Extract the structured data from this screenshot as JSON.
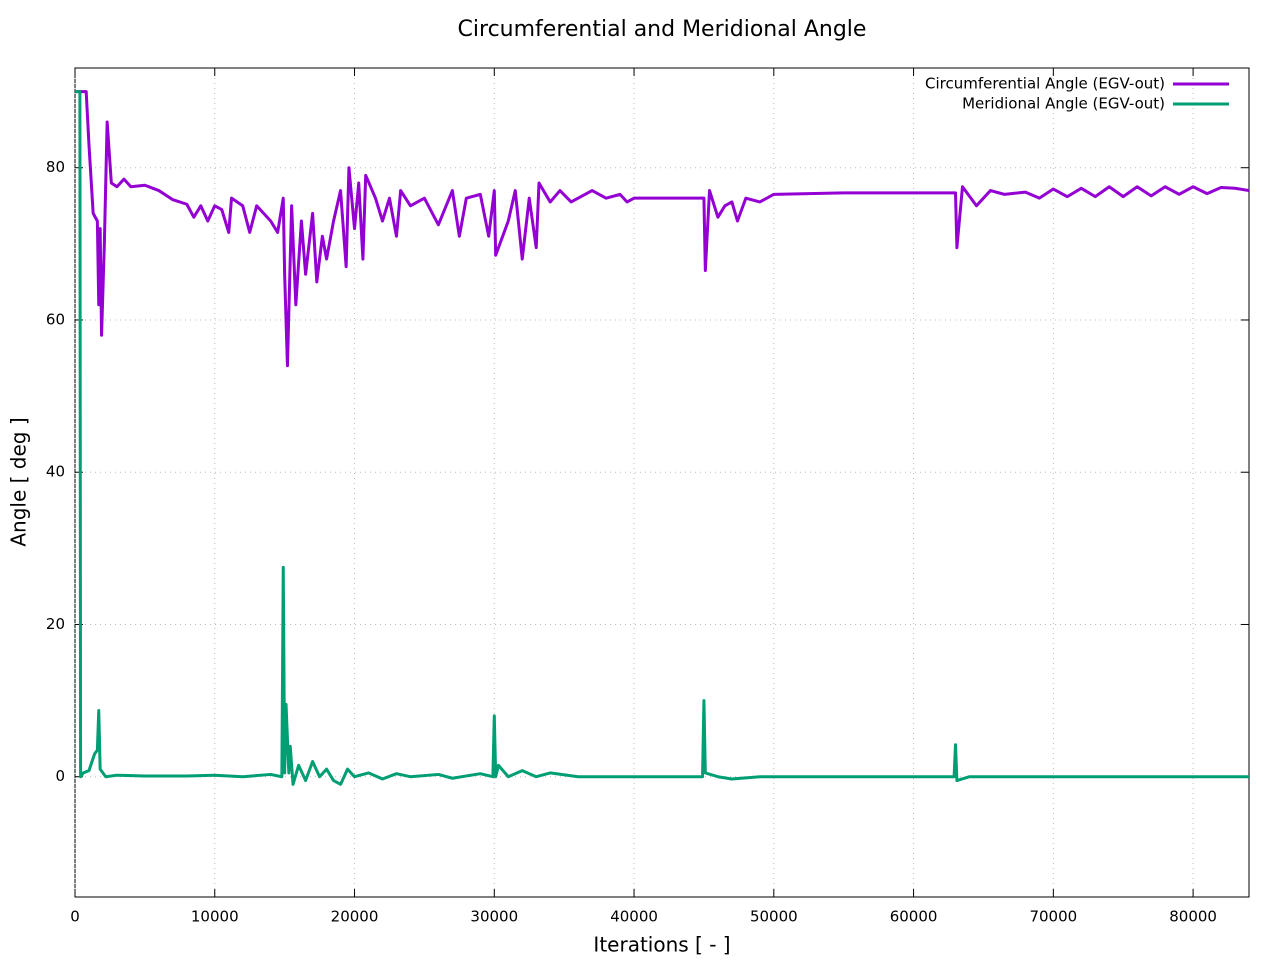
{
  "chart_data": {
    "type": "line",
    "title": "Circumferential and Meridional Angle",
    "x_label": "Iterations [ - ]",
    "y_label": "Angle [ deg ]",
    "xlim": [
      0,
      84000
    ],
    "ylim": [
      -15.8,
      93.1
    ],
    "xticks": [
      0,
      10000,
      20000,
      30000,
      40000,
      50000,
      60000,
      70000,
      80000
    ],
    "yticks": [
      0,
      20,
      40,
      60,
      80
    ],
    "grid": true,
    "legend": "top-right",
    "series": [
      {
        "name": "Circumferential Angle (EGV-out)",
        "color": "#9400d3",
        "x": [
          0,
          800,
          1000,
          1300,
          1600,
          1700,
          1800,
          1900,
          2100,
          2300,
          2600,
          3000,
          3500,
          4000,
          5000,
          6000,
          7000,
          8000,
          8500,
          9000,
          9500,
          10000,
          10500,
          11000,
          11200,
          12000,
          12500,
          13000,
          14000,
          14500,
          14900,
          15000,
          15200,
          15500,
          15800,
          16200,
          16500,
          17000,
          17300,
          17700,
          18000,
          18500,
          19000,
          19400,
          19600,
          20000,
          20300,
          20600,
          20800,
          21500,
          22000,
          22500,
          23000,
          23300,
          24000,
          25000,
          26000,
          27000,
          27500,
          28000,
          29000,
          29600,
          30000,
          30100,
          31000,
          31500,
          32000,
          32500,
          33000,
          33200,
          34000,
          34700,
          35500,
          37000,
          38000,
          39000,
          39500,
          40000,
          41000,
          45000,
          45100,
          45400,
          46000,
          46500,
          47000,
          47400,
          48000,
          49000,
          50000,
          55000,
          63000,
          63100,
          63500,
          64500,
          65500,
          66500,
          68000,
          69000,
          70000,
          71000,
          72000,
          73000,
          74000,
          75000,
          76000,
          77000,
          78000,
          79000,
          80000,
          81000,
          82000,
          83000,
          84000
        ],
        "values": [
          90,
          90,
          83,
          74,
          73,
          62,
          72,
          58,
          70,
          86,
          78,
          77.5,
          78.5,
          77.5,
          77.7,
          77,
          75.8,
          75.2,
          73.5,
          75,
          73,
          75,
          74.5,
          71.5,
          76,
          75,
          71.5,
          75,
          73,
          71.5,
          76,
          66,
          54,
          75,
          62,
          73,
          66,
          74,
          65,
          71,
          68,
          73,
          77,
          67,
          80,
          72,
          78,
          68,
          79,
          76,
          73,
          76,
          71,
          77,
          75,
          76,
          72.5,
          77,
          71,
          76,
          76.5,
          71,
          77,
          68.5,
          73,
          77,
          68,
          76,
          69.5,
          78,
          75.5,
          77,
          75.5,
          77,
          76,
          76.5,
          75.5,
          76,
          76,
          76,
          66.5,
          77,
          73.5,
          75,
          75.5,
          73,
          76,
          75.5,
          76.5,
          76.7,
          76.7,
          69.5,
          77.5,
          75,
          77,
          76.5,
          76.8,
          76,
          77.2,
          76.2,
          77.3,
          76.2,
          77.5,
          76.2,
          77.5,
          76.3,
          77.5,
          76.5,
          77.5,
          76.6,
          77.4,
          77.3,
          77
        ]
      },
      {
        "name": "Meridional Angle (EGV-out)",
        "color": "#009e73",
        "x": [
          0,
          350,
          400,
          600,
          1000,
          1400,
          1600,
          1700,
          1800,
          2200,
          3000,
          5000,
          8000,
          10000,
          12000,
          14000,
          14800,
          14900,
          15000,
          15100,
          15300,
          15400,
          15600,
          16000,
          16500,
          17000,
          17500,
          18000,
          18500,
          19000,
          19500,
          20000,
          21000,
          22000,
          23000,
          24000,
          26000,
          27000,
          29000,
          29900,
          30000,
          30100,
          30300,
          31000,
          32000,
          33000,
          34000,
          36000,
          40000,
          44900,
          45000,
          45100,
          46000,
          47000,
          49000,
          50000,
          62900,
          63000,
          63100,
          64000,
          84000
        ],
        "values": [
          90,
          90,
          0,
          0.5,
          0.8,
          3,
          3.5,
          8.7,
          1,
          0,
          0.2,
          0.1,
          0.1,
          0.2,
          0,
          0.3,
          0,
          27.5,
          0.5,
          9.5,
          0.5,
          4,
          -1,
          1.5,
          -0.5,
          2,
          0,
          1,
          -0.5,
          -1,
          1,
          0,
          0.5,
          -0.3,
          0.4,
          0,
          0.3,
          -0.2,
          0.4,
          0,
          8,
          0,
          1.5,
          0,
          0.8,
          0,
          0.5,
          0,
          0,
          0,
          10,
          0.5,
          0,
          -0.3,
          0,
          0,
          0,
          4.2,
          -0.5,
          0,
          0
        ]
      }
    ]
  }
}
